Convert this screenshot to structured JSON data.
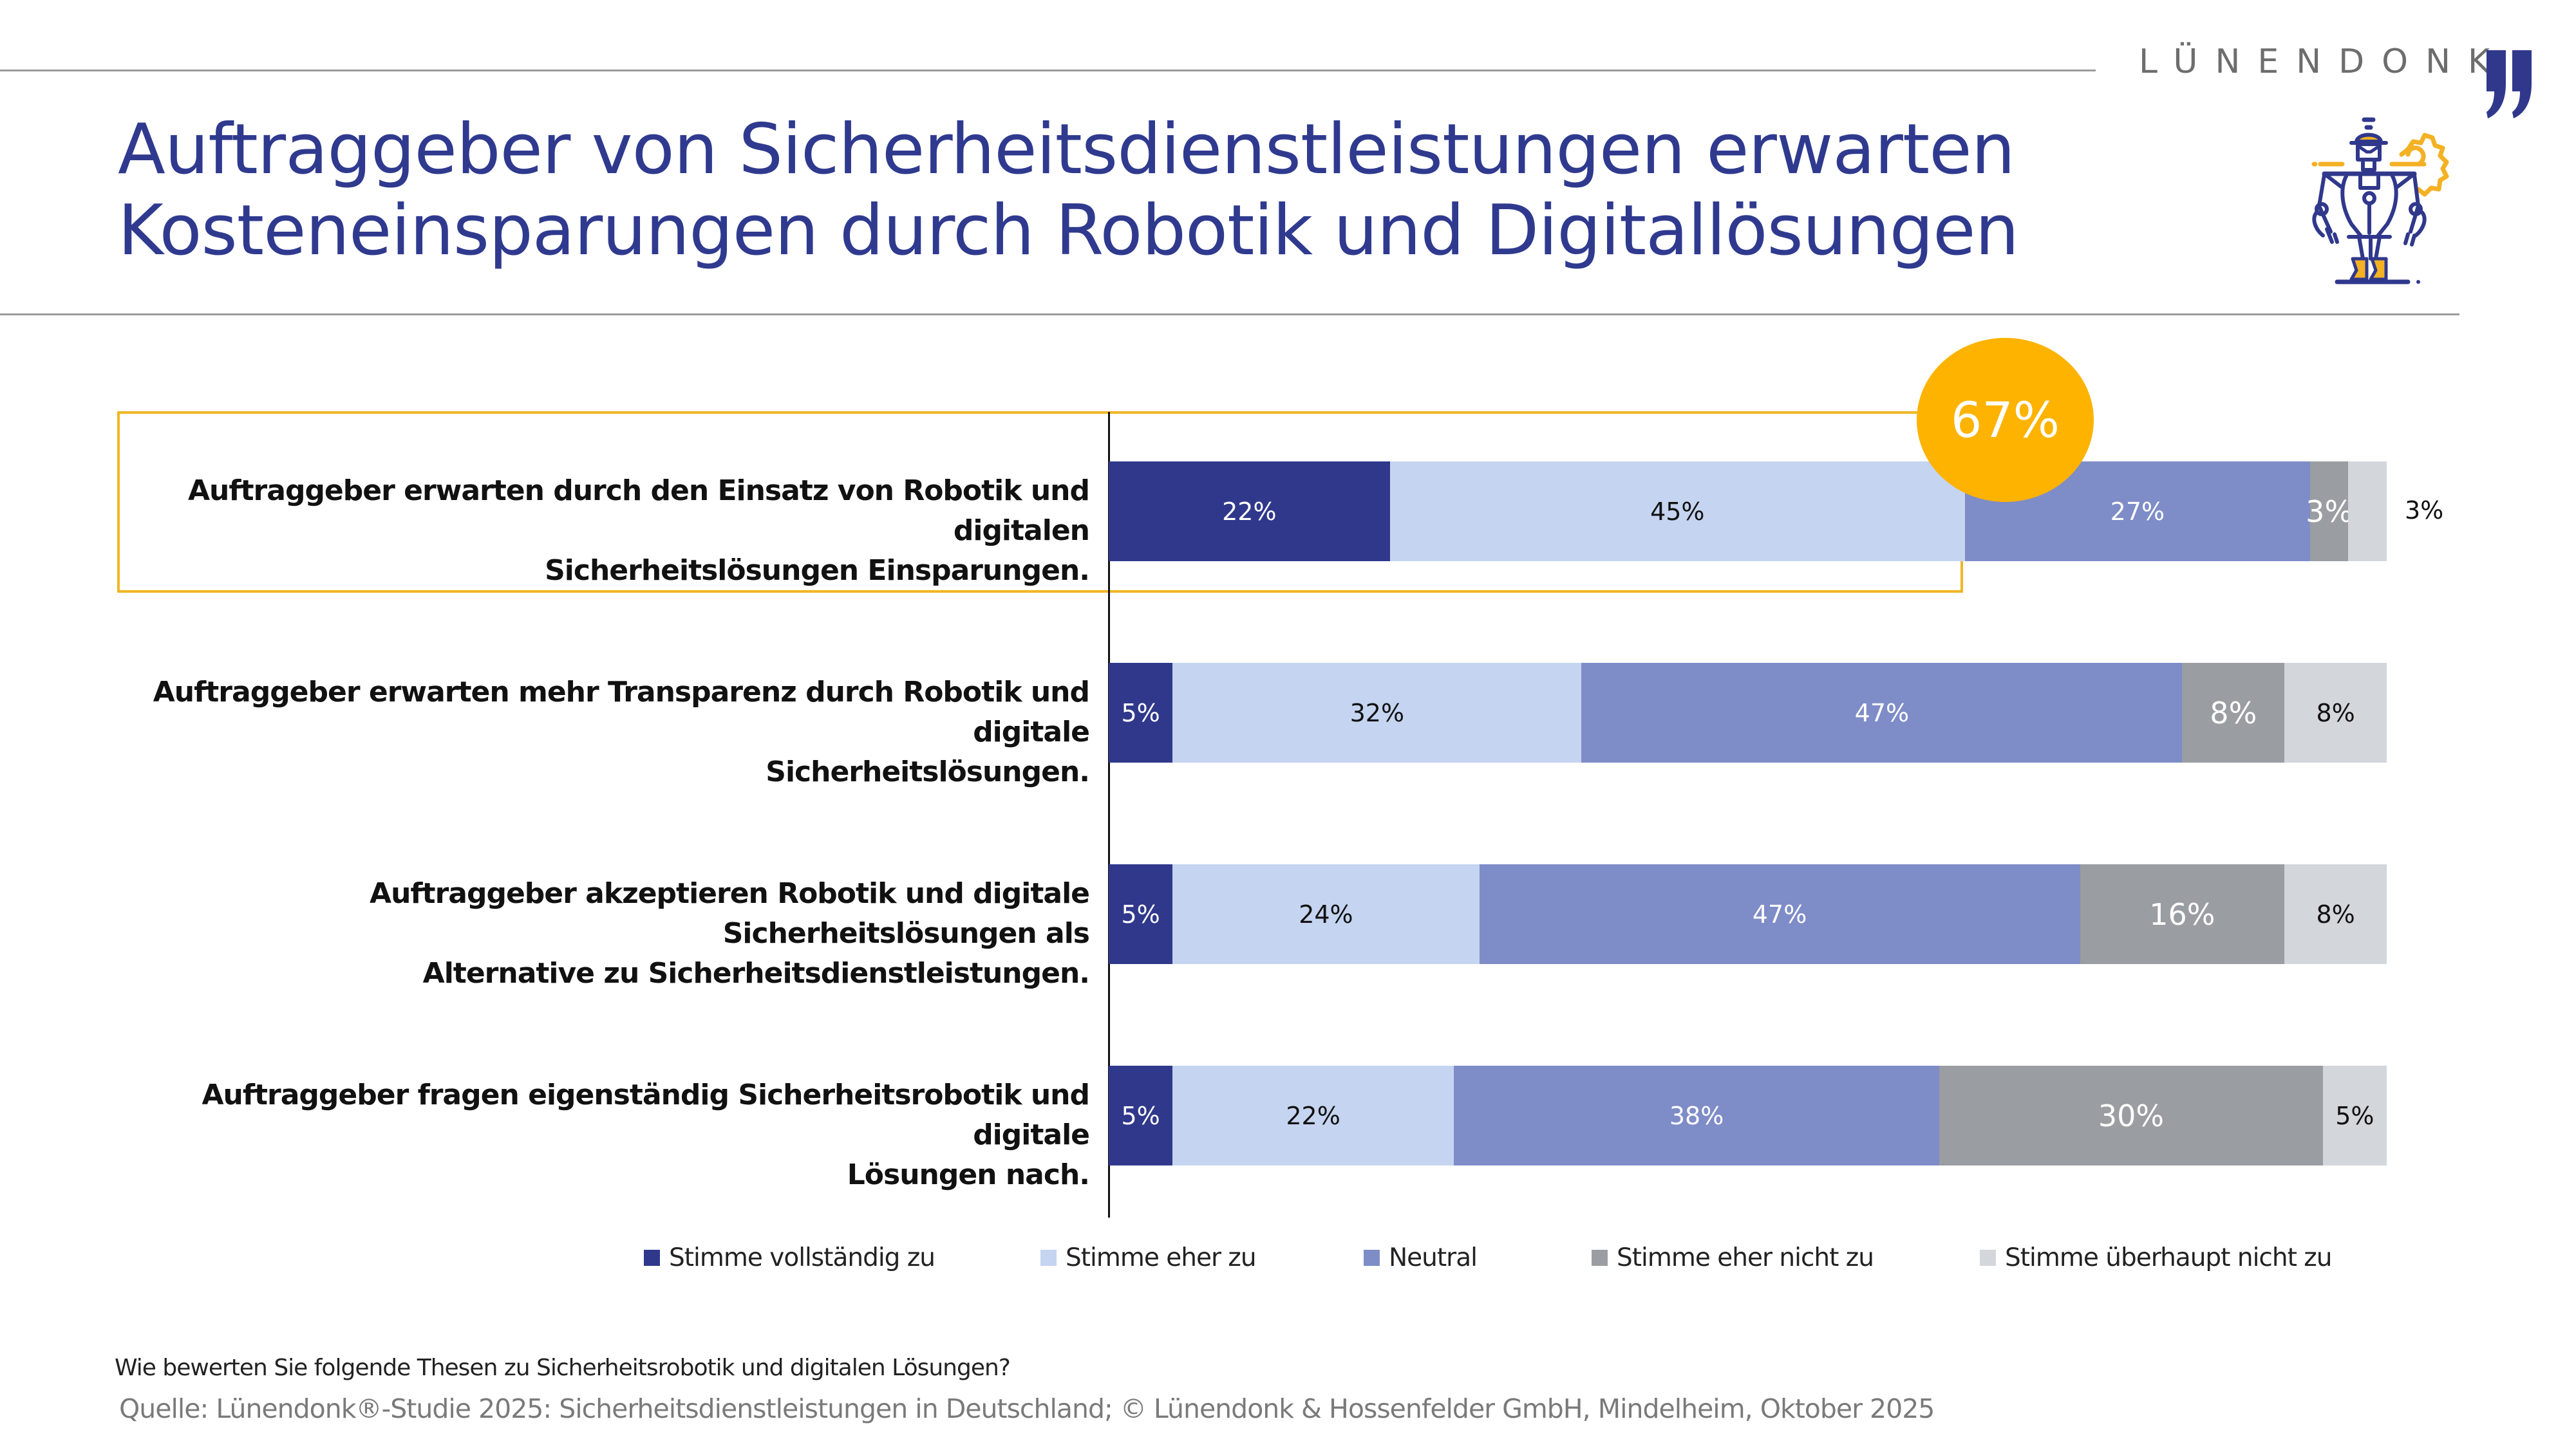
{
  "brand": {
    "name": "LÜNENDONK",
    "logo_icon": "double-quote-icon",
    "illustration": "robot-with-gear-icon"
  },
  "title": {
    "line1": "Auftraggeber von Sicherheitsdienstleistungen erwarten",
    "line2": "Kosteneinsparungen durch Robotik und Digitallösungen"
  },
  "colors": {
    "title": "#2f3a8f",
    "accent_gold": "#fdb300",
    "highlight_border": "#f0b625"
  },
  "highlight": {
    "badge_value": "67%",
    "badge_meaning": "Stimme vollständig zu + Stimme eher zu (Row 1)"
  },
  "chart_data": {
    "type": "bar",
    "orientation": "horizontal",
    "stacked": true,
    "title": "",
    "xlabel": "",
    "ylabel": "",
    "xlim": [
      0,
      100
    ],
    "unit": "%",
    "grid": false,
    "legend_position": "bottom",
    "categories": [
      "Auftraggeber erwarten durch den Einsatz von Robotik und digitalen Sicherheitslösungen Einsparungen.",
      "Auftraggeber erwarten mehr Transparenz durch Robotik und digitale Sicherheitslösungen.",
      "Auftraggeber akzeptieren Robotik und digitale Sicherheitslösungen als Alternative zu Sicherheitsdienstleistungen.",
      "Auftraggeber fragen eigenständig Sicherheitsrobotik und digitale Lösungen nach."
    ],
    "category_lines": [
      [
        "Auftraggeber erwarten durch den Einsatz von Robotik und digitalen",
        "Sicherheitslösungen Einsparungen."
      ],
      [
        "Auftraggeber erwarten mehr Transparenz durch Robotik und digitale",
        "Sicherheitslösungen."
      ],
      [
        "Auftraggeber akzeptieren Robotik und digitale Sicherheitslösungen als",
        "Alternative zu Sicherheitsdienstleistungen."
      ],
      [
        "Auftraggeber fragen eigenständig Sicherheitsrobotik und digitale",
        "Lösungen nach."
      ]
    ],
    "series": [
      {
        "name": "Stimme vollständig zu",
        "color": "#30388c",
        "label_color": "#ffffff",
        "values": [
          22,
          5,
          5,
          5
        ]
      },
      {
        "name": "Stimme eher zu",
        "color": "#c5d4f0",
        "label_color": "#111111",
        "values": [
          45,
          32,
          24,
          22
        ]
      },
      {
        "name": "Neutral",
        "color": "#7e8cc8",
        "label_color": "#ffffff",
        "values": [
          27,
          47,
          47,
          38
        ]
      },
      {
        "name": "Stimme eher nicht zu",
        "color": "#9a9da1",
        "label_color": "#ffffff",
        "values": [
          3,
          8,
          16,
          30
        ]
      },
      {
        "name": "Stimme überhaupt nicht zu",
        "color": "#d3d7dc",
        "label_color": "#111111",
        "values": [
          3,
          8,
          8,
          5
        ]
      }
    ],
    "annotations": [
      {
        "text": "67%",
        "category_index": 0,
        "note": "sum of Stimme vollständig zu and Stimme eher zu"
      }
    ]
  },
  "footer": {
    "question": "Wie bewerten Sie folgende Thesen zu Sicherheitsrobotik und digitalen Lösungen?",
    "source": "Quelle: Lünendonk®-Studie 2025: Sicherheitsdienstleistungen in Deutschland; © Lünendonk & Hossenfelder GmbH, Mindelheim, Oktober 2025"
  }
}
